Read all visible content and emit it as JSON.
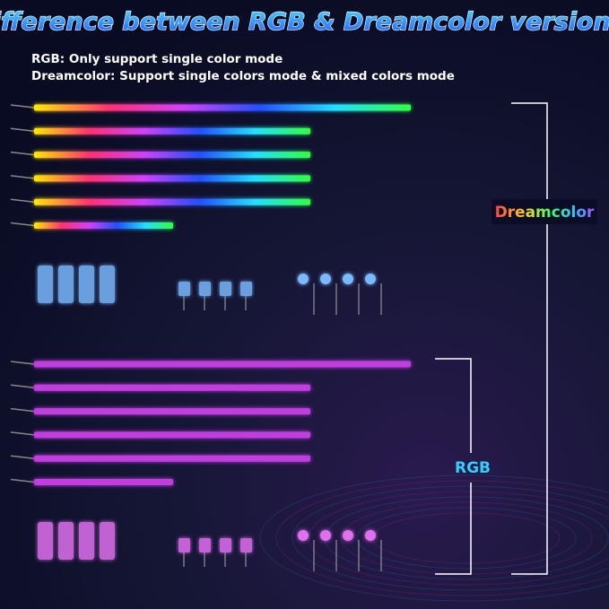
{
  "title": "Difference between RGB & Dreamcolor version",
  "lines": [
    "RGB: Only support single color mode",
    "Dreamcolor: Support single colors mode & mixed colors mode"
  ],
  "labels": {
    "dreamcolor": "Dreamcolor",
    "rgb": "RGB"
  }
}
